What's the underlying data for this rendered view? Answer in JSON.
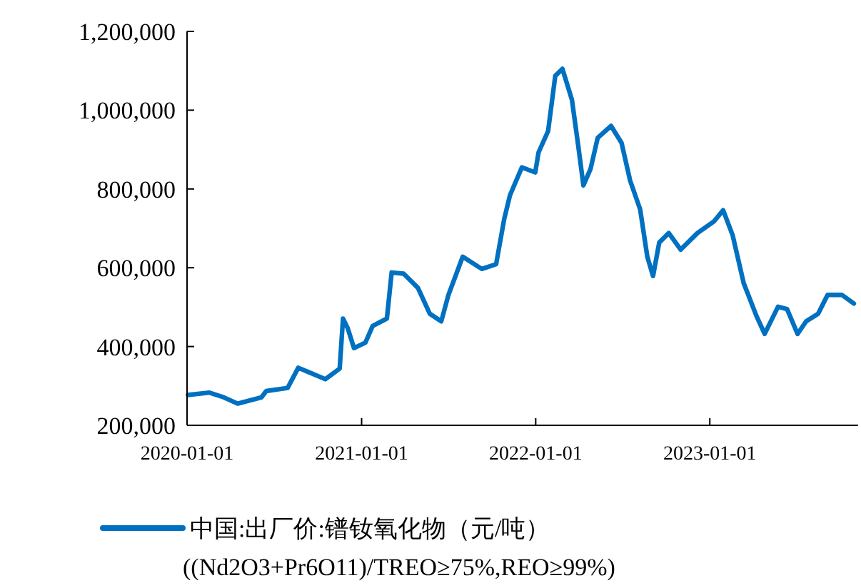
{
  "chart_data": {
    "type": "line",
    "legend": "bottom",
    "grid": false,
    "xlim": [
      "2020-01-01",
      "2023-11-08"
    ],
    "xticks": [
      {
        "value": "2020-01-01",
        "label": "2020-01-01"
      },
      {
        "value": "2021-01-01",
        "label": "2021-01-01"
      },
      {
        "value": "2022-01-01",
        "label": "2022-01-01"
      },
      {
        "value": "2023-01-01",
        "label": "2023-01-01"
      }
    ],
    "ylim": [
      200000,
      1200000
    ],
    "yticks": [
      {
        "value": 200000,
        "label": "200,000"
      },
      {
        "value": 400000,
        "label": "400,000"
      },
      {
        "value": 600000,
        "label": "600,000"
      },
      {
        "value": 800000,
        "label": "800,000"
      },
      {
        "value": 1000000,
        "label": "1,000,000"
      },
      {
        "value": 1200000,
        "label": "1,200,000"
      }
    ],
    "x": [
      "2020-01-03",
      "2020-02-17",
      "2020-03-18",
      "2020-04-16",
      "2020-06-05",
      "2020-06-15",
      "2020-07-30",
      "2020-08-21",
      "2020-09-12",
      "2020-10-17",
      "2020-11-16",
      "2020-11-23",
      "2020-12-03",
      "2020-12-16",
      "2021-01-09",
      "2021-01-24",
      "2021-02-23",
      "2021-03-05",
      "2021-03-30",
      "2021-04-29",
      "2021-05-24",
      "2021-06-17",
      "2021-07-02",
      "2021-08-01",
      "2021-09-10",
      "2021-10-10",
      "2021-10-27",
      "2021-11-08",
      "2021-12-03",
      "2021-12-31",
      "2022-01-07",
      "2022-01-27",
      "2022-02-11",
      "2022-02-26",
      "2022-03-18",
      "2022-03-31",
      "2022-04-11",
      "2022-04-26",
      "2022-05-11",
      "2022-06-08",
      "2022-06-30",
      "2022-07-18",
      "2022-08-08",
      "2022-08-23",
      "2022-09-04",
      "2022-09-17",
      "2022-10-07",
      "2022-11-01",
      "2022-12-06",
      "2023-01-10",
      "2023-01-29",
      "2023-02-18",
      "2023-03-13",
      "2023-04-09",
      "2023-04-26",
      "2023-05-24",
      "2023-06-12",
      "2023-07-04",
      "2023-07-22",
      "2023-08-16",
      "2023-09-05",
      "2023-10-05",
      "2023-10-30"
    ],
    "series": [
      {
        "name": "中国:出厂价:镨钕氧化物（元/吨）\n((Nd2O3+Pr6O11)/TREO≥75%,REO≥99%)",
        "color": "#0070c0",
        "values": [
          277000,
          283000,
          271000,
          255000,
          271000,
          287000,
          295000,
          346000,
          335000,
          317000,
          344000,
          471000,
          446000,
          396000,
          410000,
          452000,
          471000,
          588000,
          585000,
          549000,
          483000,
          464000,
          531000,
          628000,
          597000,
          609000,
          724000,
          784000,
          855000,
          842000,
          893000,
          947000,
          1087000,
          1105000,
          1026000,
          911000,
          809000,
          851000,
          930000,
          960000,
          917000,
          821000,
          748000,
          628000,
          579000,
          664000,
          688000,
          646000,
          688000,
          718000,
          746000,
          682000,
          561000,
          477000,
          432000,
          501000,
          495000,
          432000,
          464000,
          483000,
          531000,
          531000,
          509000
        ]
      }
    ]
  }
}
